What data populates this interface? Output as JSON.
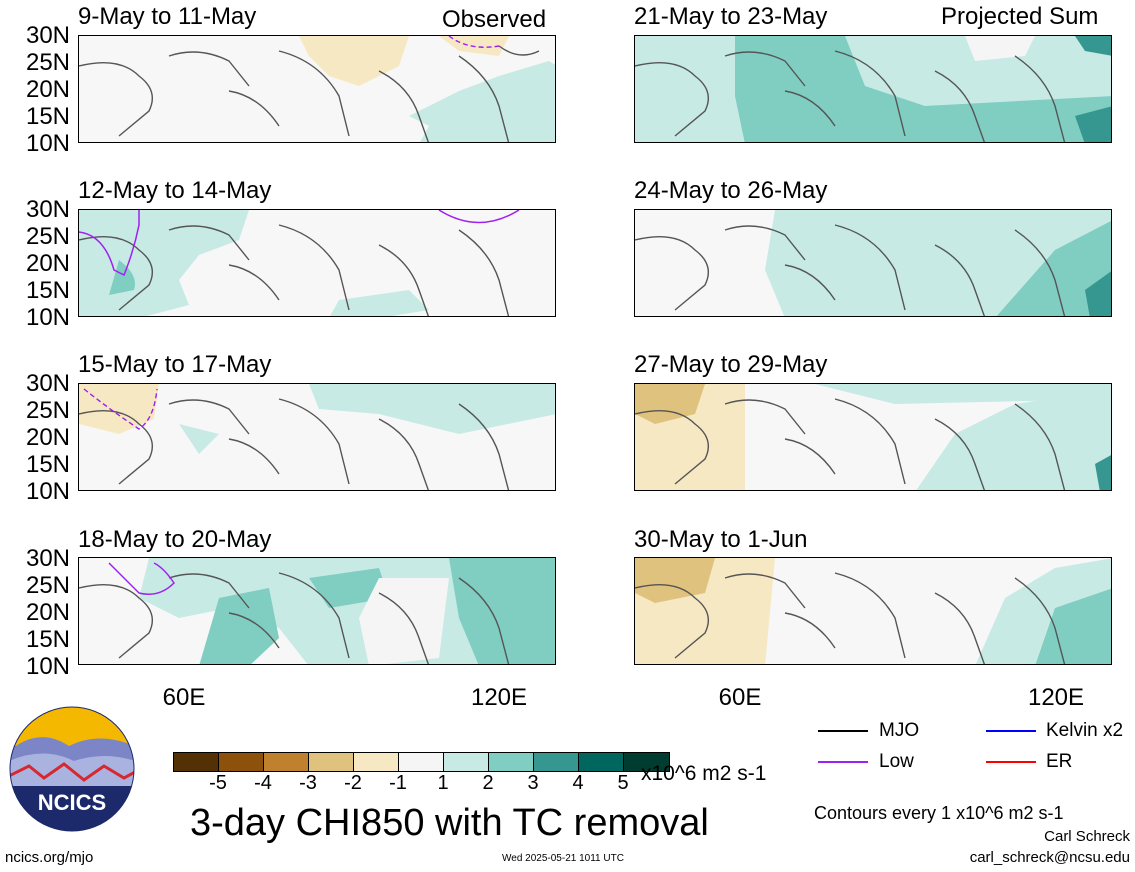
{
  "header": {
    "left_label": "Observed",
    "right_label": "Projected Sum"
  },
  "panels": {
    "left": [
      {
        "title": "9-May to 11-May"
      },
      {
        "title": "12-May to 14-May"
      },
      {
        "title": "15-May to 17-May"
      },
      {
        "title": "18-May to 20-May"
      }
    ],
    "right": [
      {
        "title": "21-May to 23-May"
      },
      {
        "title": "24-May to 26-May"
      },
      {
        "title": "27-May to 29-May"
      },
      {
        "title": "30-May to 1-Jun"
      }
    ]
  },
  "axes": {
    "lat_ticks": [
      "30N",
      "25N",
      "20N",
      "15N",
      "10N"
    ],
    "lon_ticks": [
      "60E",
      "120E"
    ]
  },
  "legend": {
    "ticks": [
      "-5",
      "-4",
      "-3",
      "-2",
      "-1",
      "1",
      "2",
      "3",
      "4",
      "5"
    ],
    "colors": [
      "#543005",
      "#8c510a",
      "#bf812d",
      "#dfc27d",
      "#f6e8c3",
      "#f5f5f5",
      "#c7eae5",
      "#80cdc1",
      "#35978f",
      "#01665e",
      "#003c30"
    ],
    "units": "x10^6 m2 s-1"
  },
  "title": "3-day CHI850 with TC removal",
  "key": {
    "mjo": {
      "label": "MJO",
      "color": "#000000"
    },
    "kelvin": {
      "label": "Kelvin x2",
      "color": "#0000ff"
    },
    "low": {
      "label": "Low",
      "color": "#a020f0"
    },
    "er": {
      "label": "ER",
      "color": "#ff0000"
    }
  },
  "contour_note": "Contours every 1 x10^6 m2 s-1",
  "author": {
    "name": "Carl Schreck",
    "email": "carl_schreck@ncsu.edu"
  },
  "footer": {
    "url": "ncics.org/mjo",
    "timestamp": "Wed 2025-05-21 1011 UTC"
  },
  "logo": {
    "text": "NCICS"
  }
}
